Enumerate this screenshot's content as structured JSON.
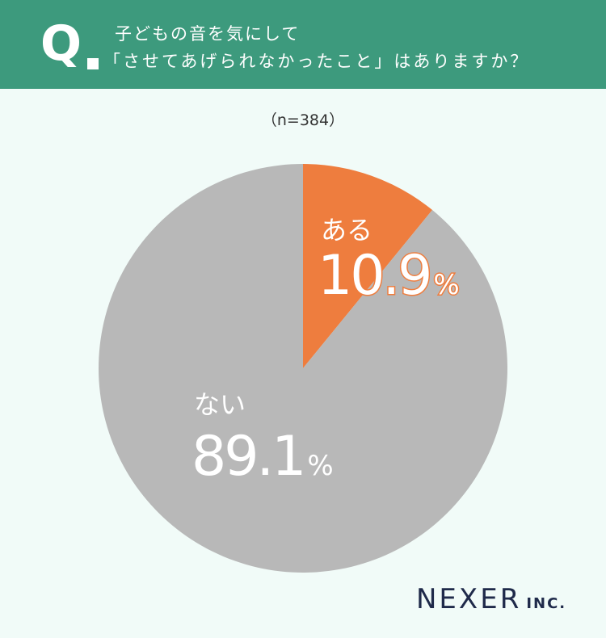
{
  "header": {
    "q_mark": "Q",
    "line1": "子どもの音を気にして",
    "line2": "「させてあげられなかったこと」はありますか？"
  },
  "sample_label": "（n=384）",
  "logo": {
    "main": "NEXER",
    "sub": "INC."
  },
  "colors": {
    "header_bg": "#3d9a7d",
    "yes": "#ee7d3e",
    "no": "#b8b8b8",
    "background": "#f1fbf8"
  },
  "chart_data": {
    "type": "pie",
    "title": "子どもの音を気にして「させてあげられなかったこと」はありますか？",
    "n": 384,
    "slices": [
      {
        "label": "ある",
        "value": 10.9,
        "display": "10.9",
        "color": "#ee7d3e"
      },
      {
        "label": "ない",
        "value": 89.1,
        "display": "89.1",
        "color": "#b8b8b8"
      }
    ],
    "unit": "%"
  }
}
